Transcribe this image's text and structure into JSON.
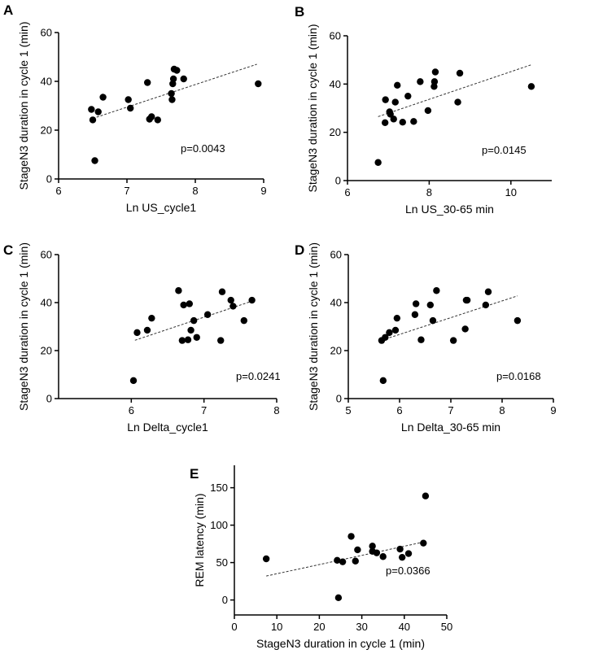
{
  "chart_data": [
    {
      "panel": "A",
      "type": "scatter",
      "xlabel": "Ln US_cycle1",
      "ylabel": "StageN3 duration in cycle 1 (min)",
      "xlim": [
        6,
        9
      ],
      "ylim": [
        0,
        60
      ],
      "xticks": [
        6,
        7,
        8,
        9
      ],
      "yticks": [
        0,
        20,
        40,
        60
      ],
      "points": [
        {
          "x": 6.48,
          "y": 28.5
        },
        {
          "x": 6.5,
          "y": 24.2
        },
        {
          "x": 6.53,
          "y": 7.5
        },
        {
          "x": 6.58,
          "y": 27.5
        },
        {
          "x": 6.65,
          "y": 33.5
        },
        {
          "x": 7.02,
          "y": 32.5
        },
        {
          "x": 7.05,
          "y": 29
        },
        {
          "x": 7.3,
          "y": 39.5
        },
        {
          "x": 7.33,
          "y": 24.5
        },
        {
          "x": 7.36,
          "y": 25.5
        },
        {
          "x": 7.45,
          "y": 24.2
        },
        {
          "x": 7.65,
          "y": 35
        },
        {
          "x": 7.66,
          "y": 32.5
        },
        {
          "x": 7.67,
          "y": 39
        },
        {
          "x": 7.68,
          "y": 41
        },
        {
          "x": 7.69,
          "y": 45
        },
        {
          "x": 7.73,
          "y": 44.5
        },
        {
          "x": 7.83,
          "y": 41
        },
        {
          "x": 8.92,
          "y": 39
        }
      ],
      "fit": {
        "x": [
          6.5,
          8.9
        ],
        "y": [
          24.8,
          47
        ]
      },
      "pvalue": "p=0.0043"
    },
    {
      "panel": "B",
      "type": "scatter",
      "xlabel": "Ln US_30-65 min",
      "ylabel": "StageN3 duration in cycle 1 (min)",
      "xlim": [
        6,
        11
      ],
      "ylim": [
        0,
        60
      ],
      "xticks": [
        6,
        8,
        10
      ],
      "yticks": [
        0,
        20,
        40,
        60
      ],
      "points": [
        {
          "x": 6.75,
          "y": 7.5
        },
        {
          "x": 6.92,
          "y": 24
        },
        {
          "x": 6.93,
          "y": 33.5
        },
        {
          "x": 7.03,
          "y": 28.5
        },
        {
          "x": 7.05,
          "y": 27.5
        },
        {
          "x": 7.13,
          "y": 25.5
        },
        {
          "x": 7.17,
          "y": 32.5
        },
        {
          "x": 7.22,
          "y": 39.5
        },
        {
          "x": 7.35,
          "y": 24.2
        },
        {
          "x": 7.48,
          "y": 35
        },
        {
          "x": 7.62,
          "y": 24.5
        },
        {
          "x": 7.78,
          "y": 41
        },
        {
          "x": 7.97,
          "y": 29
        },
        {
          "x": 8.12,
          "y": 39
        },
        {
          "x": 8.13,
          "y": 41
        },
        {
          "x": 8.15,
          "y": 45
        },
        {
          "x": 8.7,
          "y": 32.5
        },
        {
          "x": 8.75,
          "y": 44.5
        },
        {
          "x": 10.5,
          "y": 39
        }
      ],
      "fit": {
        "x": [
          6.75,
          10.5
        ],
        "y": [
          26.5,
          48
        ]
      },
      "pvalue": "p=0.0145"
    },
    {
      "panel": "C",
      "type": "scatter",
      "xlabel": "Ln Delta_cycle1",
      "ylabel": "StageN3 duration in cycle 1 (min)",
      "xlim": [
        5,
        8
      ],
      "ylim": [
        0,
        60
      ],
      "xticks": [
        6,
        7,
        8
      ],
      "yticks": [
        0,
        20,
        40,
        60
      ],
      "points": [
        {
          "x": 6.03,
          "y": 7.5
        },
        {
          "x": 6.08,
          "y": 27.5
        },
        {
          "x": 6.22,
          "y": 28.5
        },
        {
          "x": 6.28,
          "y": 33.5
        },
        {
          "x": 6.65,
          "y": 45
        },
        {
          "x": 6.7,
          "y": 24.2
        },
        {
          "x": 6.72,
          "y": 39
        },
        {
          "x": 6.78,
          "y": 24.5
        },
        {
          "x": 6.8,
          "y": 39.5
        },
        {
          "x": 6.82,
          "y": 28.5
        },
        {
          "x": 6.86,
          "y": 32.5
        },
        {
          "x": 6.9,
          "y": 25.5
        },
        {
          "x": 7.05,
          "y": 35
        },
        {
          "x": 7.23,
          "y": 24.2
        },
        {
          "x": 7.25,
          "y": 44.5
        },
        {
          "x": 7.37,
          "y": 41
        },
        {
          "x": 7.4,
          "y": 38.5
        },
        {
          "x": 7.55,
          "y": 32.5
        },
        {
          "x": 7.66,
          "y": 41
        }
      ],
      "fit": {
        "x": [
          6.05,
          7.65
        ],
        "y": [
          24.3,
          40.5
        ]
      },
      "pvalue": "p=0.0241"
    },
    {
      "panel": "D",
      "type": "scatter",
      "xlabel": "Ln Delta_30-65 min",
      "ylabel": "StageN3 duration in cycle 1 (min)",
      "xlim": [
        5,
        9
      ],
      "ylim": [
        0,
        60
      ],
      "xticks": [
        5,
        6,
        7,
        8,
        9
      ],
      "yticks": [
        0,
        20,
        40,
        60
      ],
      "points": [
        {
          "x": 5.65,
          "y": 24.2
        },
        {
          "x": 5.68,
          "y": 7.5
        },
        {
          "x": 5.72,
          "y": 25.5
        },
        {
          "x": 5.8,
          "y": 27.5
        },
        {
          "x": 5.92,
          "y": 28.5
        },
        {
          "x": 5.95,
          "y": 33.5
        },
        {
          "x": 6.3,
          "y": 35
        },
        {
          "x": 6.32,
          "y": 39.5
        },
        {
          "x": 6.42,
          "y": 24.5
        },
        {
          "x": 6.6,
          "y": 39
        },
        {
          "x": 6.65,
          "y": 32.5
        },
        {
          "x": 6.72,
          "y": 45
        },
        {
          "x": 7.05,
          "y": 24.2
        },
        {
          "x": 7.28,
          "y": 29
        },
        {
          "x": 7.3,
          "y": 41
        },
        {
          "x": 7.32,
          "y": 41
        },
        {
          "x": 7.68,
          "y": 39
        },
        {
          "x": 7.73,
          "y": 44.5
        },
        {
          "x": 8.3,
          "y": 32.5
        }
      ],
      "fit": {
        "x": [
          5.65,
          8.3
        ],
        "y": [
          24.3,
          42.8
        ]
      },
      "pvalue": "p=0.0168"
    },
    {
      "panel": "E",
      "type": "scatter",
      "xlabel": "StageN3 duration in cycle 1 (min)",
      "ylabel": "REM latency (min)",
      "xlim": [
        0,
        50
      ],
      "ylim": [
        -20,
        180
      ],
      "xticks": [
        0,
        10,
        20,
        30,
        40,
        50
      ],
      "yticks": [
        0,
        50,
        100,
        150
      ],
      "points": [
        {
          "x": 7.5,
          "y": 55
        },
        {
          "x": 24.2,
          "y": 53
        },
        {
          "x": 24.5,
          "y": 3
        },
        {
          "x": 25.5,
          "y": 51
        },
        {
          "x": 27.5,
          "y": 85
        },
        {
          "x": 28.5,
          "y": 52
        },
        {
          "x": 29,
          "y": 67
        },
        {
          "x": 32.5,
          "y": 72
        },
        {
          "x": 32.5,
          "y": 65
        },
        {
          "x": 33.5,
          "y": 63
        },
        {
          "x": 35,
          "y": 58
        },
        {
          "x": 39,
          "y": 68
        },
        {
          "x": 39.5,
          "y": 57
        },
        {
          "x": 41,
          "y": 62
        },
        {
          "x": 44.5,
          "y": 76
        },
        {
          "x": 45,
          "y": 139
        }
      ],
      "fit": {
        "x": [
          7.5,
          45
        ],
        "y": [
          32,
          78
        ]
      },
      "pvalue": "p=0.0366"
    }
  ]
}
